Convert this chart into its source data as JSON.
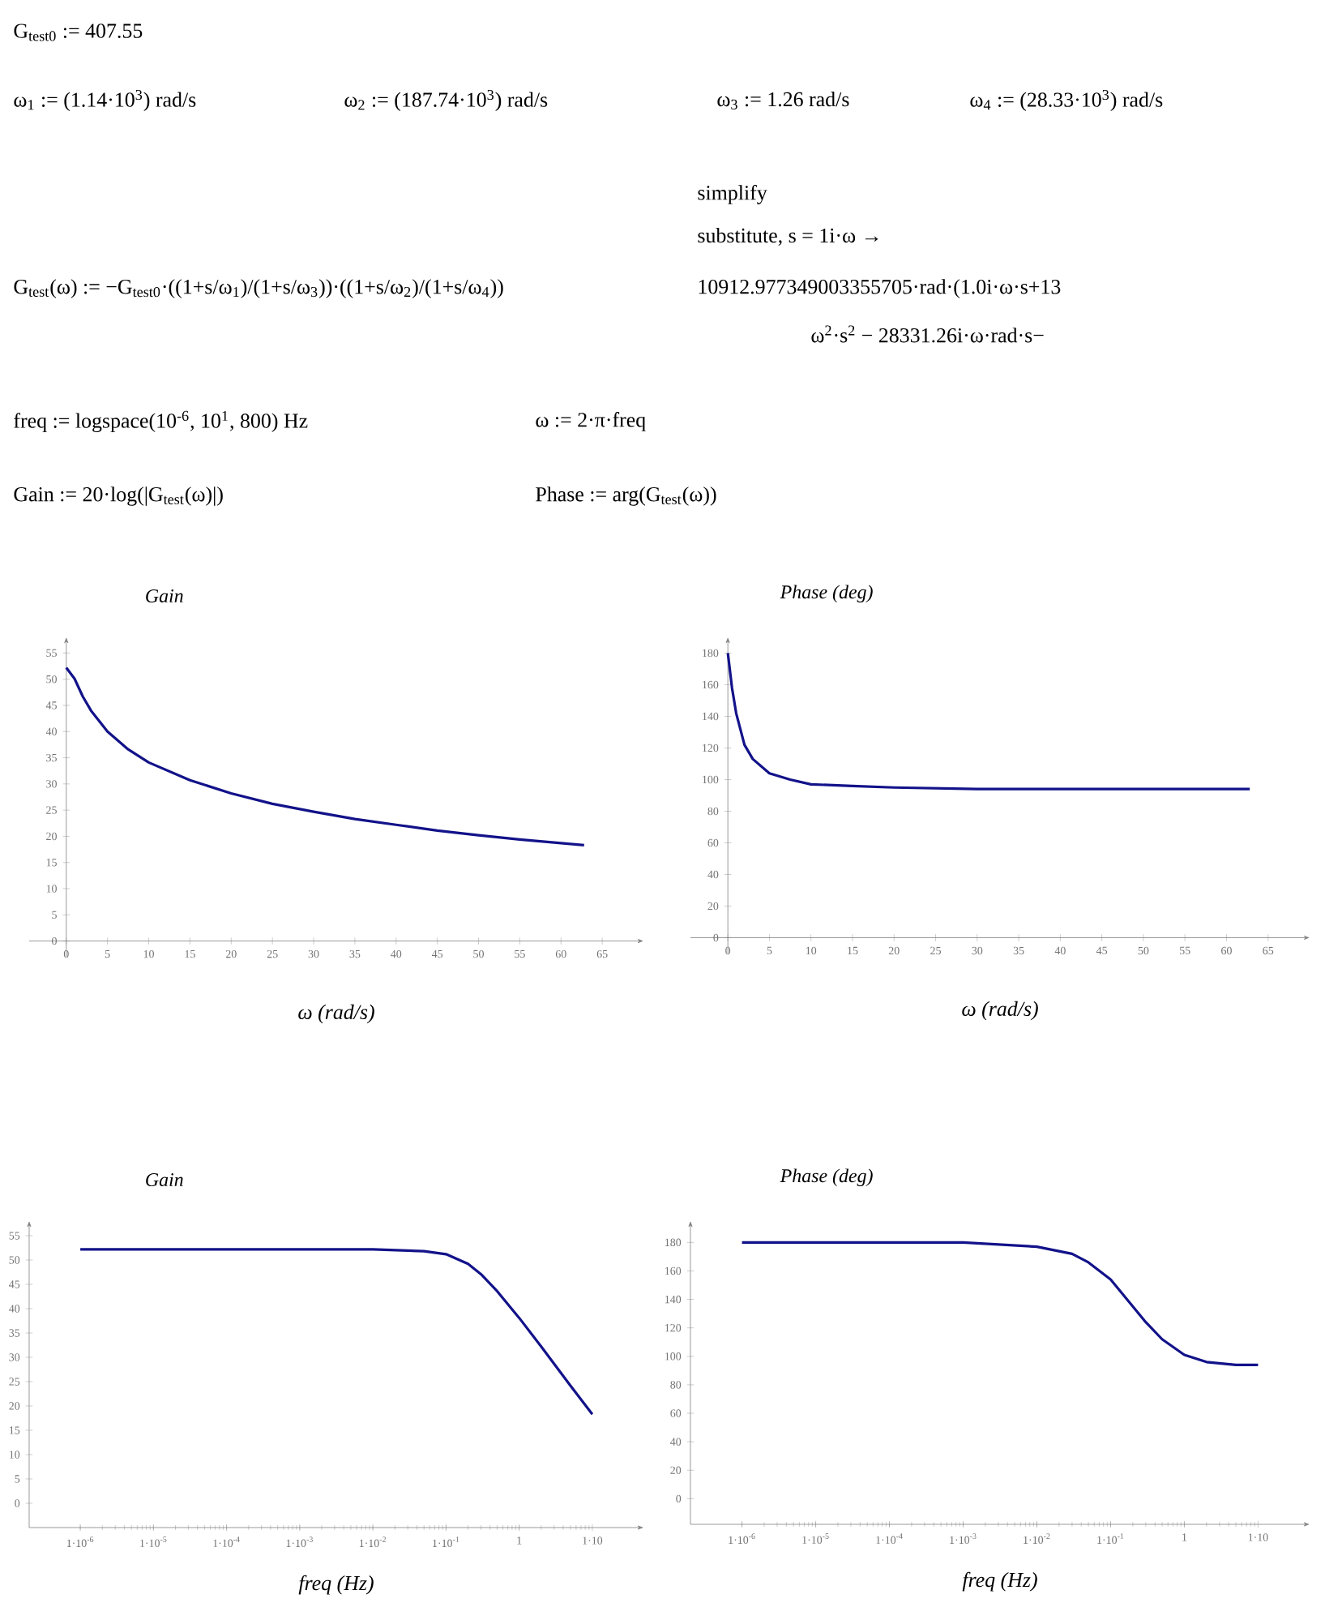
{
  "chart_data": [
    {
      "type": "line",
      "title": "Gain",
      "xlabel": "ω (rad/s)",
      "color": "#12128a",
      "xlim": [
        -4.5,
        70
      ],
      "ylim": [
        -3,
        58
      ],
      "xticks": [
        0,
        5,
        10,
        15,
        20,
        25,
        30,
        35,
        40,
        45,
        50,
        55,
        60,
        65
      ],
      "yticks": [
        0,
        5,
        10,
        15,
        20,
        25,
        30,
        35,
        40,
        45,
        50,
        55
      ],
      "x": [
        0,
        1,
        2,
        3,
        5,
        7.5,
        10,
        15,
        20,
        25,
        30,
        35,
        40,
        45,
        50,
        55,
        62.8
      ],
      "values": [
        52.2,
        50.1,
        46.7,
        44.0,
        40.0,
        36.6,
        34.1,
        30.7,
        28.2,
        26.2,
        24.7,
        23.3,
        22.2,
        21.1,
        20.2,
        19.4,
        18.3
      ],
      "annotations": [
        "G$_{test0}$ := 407.55",
        "ω$_{1}$ := (1.14·10$^{3}$) rad/s",
        "ω$_{2}$ := (187.74·10$^{3}$) rad/s",
        "ω$_{3}$ := 1.26 rad/s",
        "ω$_{4}$ := (28.33·10$^{3}$) rad/s",
        "G$_{test}$(ω) := −G$_{test0}$·((1+s/ω$_{1}$)/(1+s/ω$_{3}$))·((1+s/ω$_{2}$)/(1+s/ω$_{4}$))",
        "simplify",
        "substitute, s = 1i·ω →",
        "10912.977349003355705·rad·(1.0i·ω·s+13",
        "ω$^{2}$·s$^{2}$ − 28331.26i·ω·rad·s−",
        "freq := logspace(10$^{-6}$, 10$^{1}$, 800) Hz",
        "ω := 2·π·freq",
        "Gain := 20·log(|G$_{test}$(ω)|)",
        "Phase := arg(G$_{test}$(ω))"
      ]
    },
    {
      "type": "line",
      "title": "Phase (deg)",
      "xlabel": "ω (rad/s)",
      "color": "#12128a",
      "xlim": [
        -4.5,
        70
      ],
      "ylim": [
        -10,
        190
      ],
      "xticks": [
        0,
        5,
        10,
        15,
        20,
        25,
        30,
        35,
        40,
        45,
        50,
        55,
        60,
        65
      ],
      "yticks": [
        0,
        20,
        40,
        60,
        80,
        100,
        120,
        140,
        160,
        180
      ],
      "x": [
        0,
        0.5,
        1,
        2,
        3,
        5,
        7.5,
        10,
        15,
        20,
        30,
        40,
        50,
        62.8
      ],
      "values": [
        180,
        158,
        142,
        122,
        113,
        104,
        100,
        97,
        96,
        95,
        94,
        94,
        94,
        94
      ]
    },
    {
      "type": "line",
      "title": "Gain",
      "xlabel": "freq (Hz)",
      "color": "#12128a",
      "log": "x",
      "xlim": [
        2e-07,
        50
      ],
      "ylim": [
        -5,
        58
      ],
      "xticks": [
        {
          "value": 1e-06,
          "label": "1·10$^{-6}$"
        },
        {
          "value": 1e-05,
          "label": "1·10$^{-5}$"
        },
        {
          "value": 0.0001,
          "label": "1·10$^{-4}$"
        },
        {
          "value": 0.001,
          "label": "1·10$^{-3}$"
        },
        {
          "value": 0.01,
          "label": "1·10$^{-2}$"
        },
        {
          "value": 0.1,
          "label": "1·10$^{-1}$"
        },
        1,
        {
          "value": 10,
          "label": "1·10"
        }
      ],
      "yticks": [
        0,
        5,
        10,
        15,
        20,
        25,
        30,
        35,
        40,
        45,
        50,
        55
      ],
      "x": [
        1e-06,
        0.001,
        0.01,
        0.05,
        0.1,
        0.2,
        0.3,
        0.5,
        1,
        2,
        5,
        10
      ],
      "values": [
        52.2,
        52.2,
        52.2,
        51.8,
        51.2,
        49.2,
        47.1,
        43.6,
        38.1,
        32.2,
        24.2,
        18.3
      ]
    },
    {
      "type": "line",
      "title": "Phase (deg)",
      "xlabel": "freq (Hz)",
      "color": "#12128a",
      "log": "x",
      "xlim": [
        2e-07,
        50
      ],
      "ylim": [
        -18,
        195
      ],
      "xticks": [
        {
          "value": 1e-06,
          "label": "1·10$^{-6}$"
        },
        {
          "value": 1e-05,
          "label": "1·10$^{-5}$"
        },
        {
          "value": 0.0001,
          "label": "1·10$^{-4}$"
        },
        {
          "value": 0.001,
          "label": "1·10$^{-3}$"
        },
        {
          "value": 0.01,
          "label": "1·10$^{-2}$"
        },
        {
          "value": 0.1,
          "label": "1·10$^{-1}$"
        },
        1,
        {
          "value": 10,
          "label": "1·10"
        }
      ],
      "yticks": [
        0,
        20,
        40,
        60,
        80,
        100,
        120,
        140,
        160,
        180
      ],
      "x": [
        1e-06,
        0.001,
        0.01,
        0.03,
        0.05,
        0.1,
        0.2,
        0.3,
        0.5,
        1,
        2,
        5,
        10
      ],
      "values": [
        180,
        180,
        177,
        172,
        166,
        154,
        135,
        124,
        112,
        101,
        96,
        94,
        94
      ]
    }
  ]
}
